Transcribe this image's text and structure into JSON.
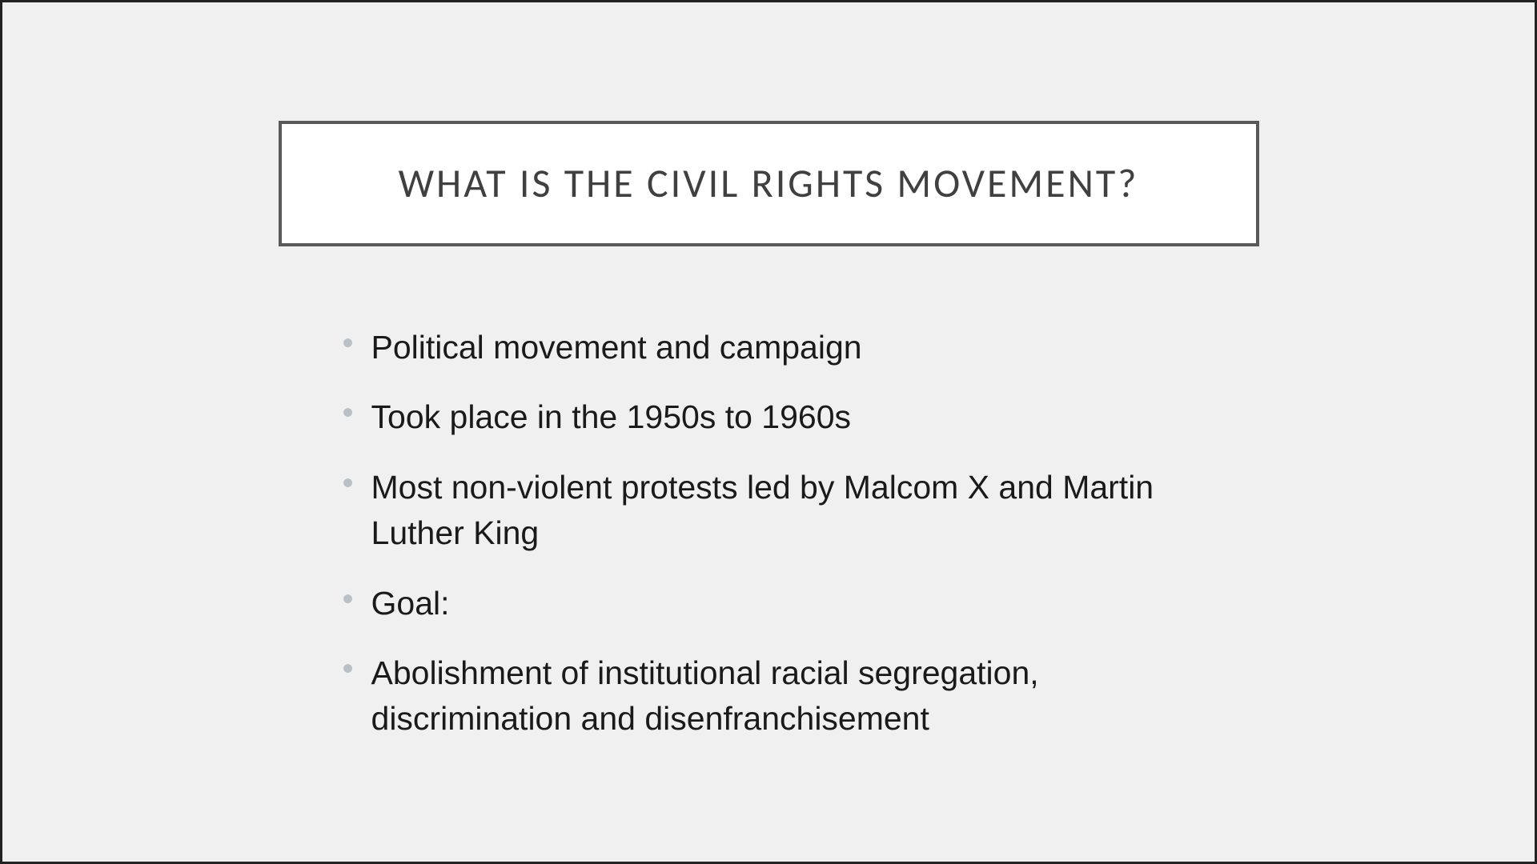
{
  "slide": {
    "title": "WHAT IS THE CIVIL RIGHTS MOVEMENT?",
    "bullets": [
      "Political movement and campaign",
      "Took place in the 1950s to 1960s",
      "Most non-violent protests led by Malcom X and Martin Luther King",
      "Goal:",
      "Abolishment of institutional racial segregation, discrimination and disenfranchisement"
    ],
    "styling": {
      "background_color": "#f0f0f0",
      "outer_border_color": "#222222",
      "outer_border_width": 3,
      "title_box_bg": "#ffffff",
      "title_box_border_color": "#595959",
      "title_box_border_width": 4,
      "title_color": "#404040",
      "title_fontsize": 50,
      "title_letter_spacing": 3,
      "bullet_marker_color": "#b8c0c8",
      "bullet_text_color": "#1a1a1a",
      "bullet_fontsize": 41,
      "bullet_line_height": 1.4
    }
  }
}
